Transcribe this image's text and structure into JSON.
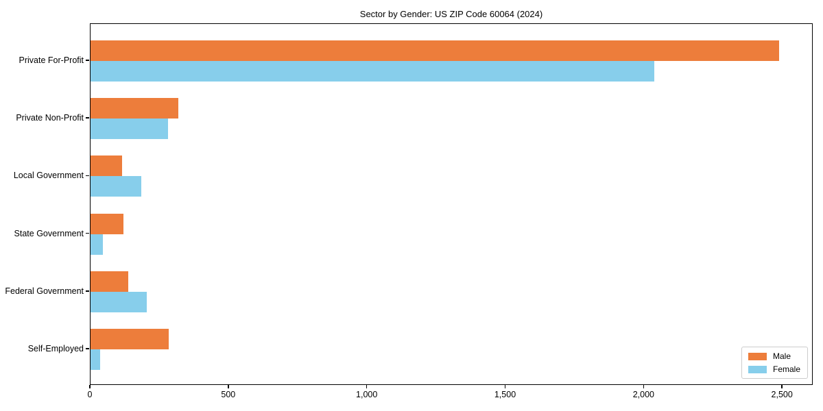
{
  "chart_data": {
    "type": "bar",
    "orientation": "horizontal",
    "title": "Sector by Gender: US ZIP Code 60064 (2024)",
    "categories": [
      "Private For-Profit",
      "Private Non-Profit",
      "Local Government",
      "State Government",
      "Federal Government",
      "Self-Employed"
    ],
    "series": [
      {
        "name": "Male",
        "color": "#ED7D3B",
        "values": [
          2487,
          318,
          114,
          120,
          137,
          283
        ]
      },
      {
        "name": "Female",
        "color": "#87CEEB",
        "values": [
          2036,
          280,
          184,
          45,
          202,
          34
        ]
      }
    ],
    "xlim": [
      0,
      2611
    ],
    "xticks": [
      0,
      500,
      1000,
      1500,
      2000,
      2500
    ],
    "xtick_labels": [
      "0",
      "500",
      "1,000",
      "1,500",
      "2,000",
      "2,500"
    ],
    "ylabel": "",
    "xlabel": "",
    "grid": false,
    "legend": {
      "position": "lower right",
      "entries": [
        "Male",
        "Female"
      ]
    }
  }
}
